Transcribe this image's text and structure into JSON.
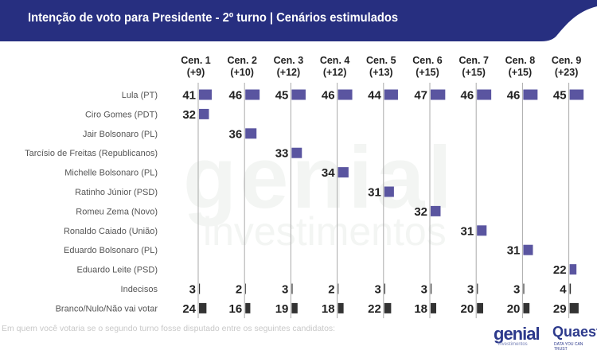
{
  "title": "Intenção de voto para Presidente - 2º turno | Cenários estimulados",
  "note": "Em quem você votaria se o segundo turno fosse disputado entre os seguintes candidatos:",
  "logos": {
    "genial": "genial",
    "genial_sub": "investimentos",
    "quaest": "Quaest",
    "quaest_sub": "DATA YOU CAN TRUST"
  },
  "watermark": {
    "main": "genial",
    "sub": "investimentos"
  },
  "colors": {
    "header": "#272f80",
    "bar": "#5a55a0",
    "bar_other": "#333333",
    "gridline": "#aaaaaa"
  },
  "chart_data": {
    "type": "bar",
    "title": "Intenção de voto para Presidente - 2º turno | Cenários estimulados",
    "categories": [
      "Lula (PT)",
      "Ciro Gomes (PDT)",
      "Jair Bolsonaro (PL)",
      "Tarcísio de Freitas (Republicanos)",
      "Michelle Bolsonaro (PL)",
      "Ratinho Júnior (PSD)",
      "Romeu Zema (Novo)",
      "Ronaldo Caiado (União)",
      "Eduardo Bolsonaro (PL)",
      "Eduardo Leite (PSD)",
      "Indecisos",
      "Branco/Nulo/Não vai votar"
    ],
    "series": [
      {
        "name": "Cen. 1",
        "margin": "(+9)",
        "values": [
          41,
          32,
          null,
          null,
          null,
          null,
          null,
          null,
          null,
          null,
          3,
          24
        ]
      },
      {
        "name": "Cen. 2",
        "margin": "(+10)",
        "values": [
          46,
          null,
          36,
          null,
          null,
          null,
          null,
          null,
          null,
          null,
          2,
          16
        ]
      },
      {
        "name": "Cen. 3",
        "margin": "(+12)",
        "values": [
          45,
          null,
          null,
          33,
          null,
          null,
          null,
          null,
          null,
          null,
          3,
          19
        ]
      },
      {
        "name": "Cen. 4",
        "margin": "(+12)",
        "values": [
          46,
          null,
          null,
          null,
          34,
          null,
          null,
          null,
          null,
          null,
          2,
          18
        ]
      },
      {
        "name": "Cen. 5",
        "margin": "(+13)",
        "values": [
          44,
          null,
          null,
          null,
          null,
          31,
          null,
          null,
          null,
          null,
          3,
          22
        ]
      },
      {
        "name": "Cen. 6",
        "margin": "(+15)",
        "values": [
          47,
          null,
          null,
          null,
          null,
          null,
          32,
          null,
          null,
          null,
          3,
          18
        ]
      },
      {
        "name": "Cen. 7",
        "margin": "(+15)",
        "values": [
          46,
          null,
          null,
          null,
          null,
          null,
          null,
          31,
          null,
          null,
          3,
          20
        ]
      },
      {
        "name": "Cen. 8",
        "margin": "(+15)",
        "values": [
          46,
          null,
          null,
          null,
          null,
          null,
          null,
          null,
          31,
          null,
          3,
          20
        ]
      },
      {
        "name": "Cen. 9",
        "margin": "(+23)",
        "values": [
          45,
          null,
          null,
          null,
          null,
          null,
          null,
          null,
          null,
          22,
          4,
          29
        ]
      }
    ]
  }
}
